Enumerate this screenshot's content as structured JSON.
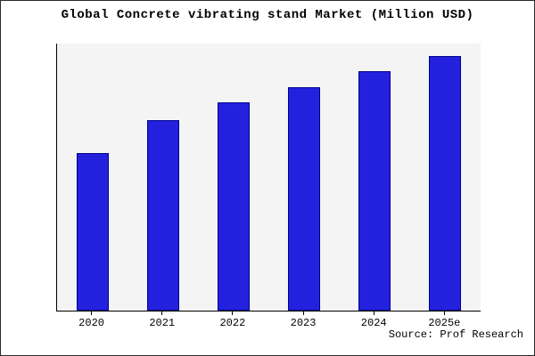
{
  "title": "Global Concrete vibrating stand Market (Million USD)",
  "source": "Source: Prof Research",
  "chart_data": {
    "type": "bar",
    "title": "Global Concrete vibrating stand Market (Million USD)",
    "categories": [
      "2020",
      "2021",
      "2022",
      "2023",
      "2024",
      "2025e"
    ],
    "values": [
      62,
      75,
      82,
      88,
      94,
      100
    ],
    "xlabel": "",
    "ylabel": "",
    "ylim": [
      0,
      105
    ],
    "grid": false,
    "legend": "none",
    "bar_color": "#2421de",
    "bar_border_color": "#00008b",
    "plot_bg": "#f4f4f4",
    "annotation": "Source: Prof Research"
  }
}
